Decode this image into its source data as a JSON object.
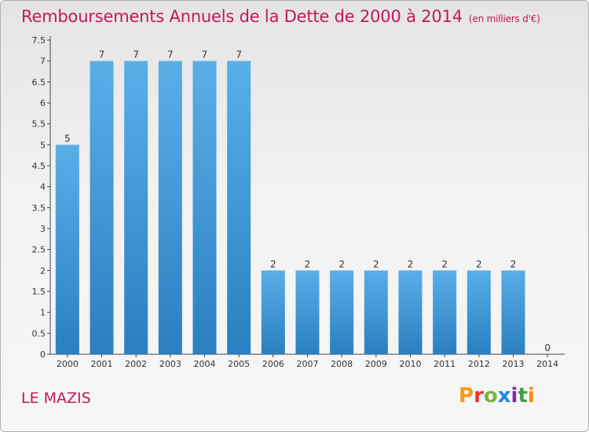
{
  "title": "Remboursements Annuels de la Dette de 2000 à 2014",
  "unit": "(en milliers d'€)",
  "commune": "LE MAZIS",
  "logo_text": "Proxiti",
  "colors": {
    "title": "#c2185b",
    "bar_top": "#5aaee8",
    "bar_bottom": "#2a7fc0",
    "logo": [
      "#f39c12",
      "#e53935",
      "#7cb342",
      "#1e88e5",
      "#8e24aa",
      "#43a047",
      "#fb8c00"
    ]
  },
  "chart_data": {
    "type": "bar",
    "title": "Remboursements Annuels de la Dette de 2000 à 2014",
    "subtitle": "(en milliers d'€)",
    "categories": [
      "2000",
      "2001",
      "2002",
      "2003",
      "2004",
      "2005",
      "2006",
      "2007",
      "2008",
      "2009",
      "2010",
      "2011",
      "2012",
      "2013",
      "2014"
    ],
    "values": [
      5,
      7,
      7,
      7,
      7,
      7,
      2,
      2,
      2,
      2,
      2,
      2,
      2,
      2,
      0
    ],
    "data_labels": [
      "5",
      "7",
      "7",
      "7",
      "7",
      "7",
      "2",
      "2",
      "2",
      "2",
      "2",
      "2",
      "2",
      "2",
      "0"
    ],
    "yticks": [
      "0",
      "0.5",
      "1",
      "1.5",
      "2",
      "2.5",
      "3",
      "3.5",
      "4",
      "4.5",
      "5",
      "5.5",
      "6",
      "6.5",
      "7",
      "7.5"
    ],
    "ylim": [
      0,
      7.5
    ],
    "grid": false
  }
}
